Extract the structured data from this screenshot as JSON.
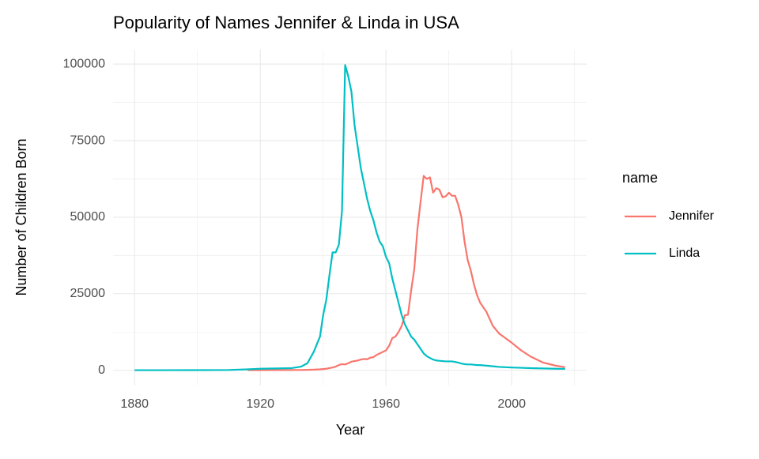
{
  "chart_data": {
    "type": "line",
    "title": "Popularity of Names Jennifer & Linda in USA",
    "x_label": "Year",
    "y_label": "Number of Children Born",
    "legend_title": "name",
    "x": [
      1880,
      1890,
      1900,
      1910,
      1916,
      1920,
      1925,
      1930,
      1933,
      1935,
      1937,
      1939,
      1940,
      1941,
      1942,
      1943,
      1944,
      1945,
      1946,
      1947,
      1948,
      1949,
      1950,
      1951,
      1952,
      1953,
      1954,
      1955,
      1956,
      1957,
      1958,
      1959,
      1960,
      1961,
      1962,
      1963,
      1964,
      1965,
      1966,
      1967,
      1968,
      1969,
      1970,
      1971,
      1972,
      1973,
      1974,
      1975,
      1976,
      1977,
      1978,
      1979,
      1980,
      1981,
      1982,
      1983,
      1984,
      1985,
      1986,
      1987,
      1988,
      1989,
      1990,
      1992,
      1994,
      1996,
      1998,
      2000,
      2003,
      2006,
      2010,
      2014,
      2017
    ],
    "series": [
      {
        "name": "Jennifer",
        "color": "#f8766d",
        "values": [
          null,
          null,
          null,
          null,
          30,
          50,
          60,
          80,
          100,
          150,
          200,
          300,
          400,
          500,
          700,
          900,
          1200,
          1700,
          2000,
          1900,
          2300,
          2800,
          3000,
          3200,
          3500,
          3700,
          3600,
          4100,
          4300,
          5000,
          5500,
          6000,
          6500,
          8000,
          10500,
          11000,
          12500,
          14500,
          18000,
          18100,
          26000,
          33000,
          46000,
          55000,
          63500,
          62500,
          63000,
          58000,
          59500,
          59000,
          56500,
          56800,
          58000,
          57000,
          57000,
          54000,
          50000,
          42000,
          36000,
          32500,
          28000,
          24500,
          22000,
          19000,
          14500,
          12000,
          10500,
          9000,
          6500,
          4500,
          2500,
          1500,
          1000
        ]
      },
      {
        "name": "Linda",
        "color": "#00bfc4",
        "values": [
          27,
          30,
          50,
          100,
          300,
          500,
          600,
          700,
          1200,
          2300,
          6000,
          11000,
          18000,
          23000,
          31000,
          38500,
          38500,
          41000,
          52000,
          99700,
          96000,
          91000,
          80000,
          73000,
          66000,
          61000,
          56000,
          52000,
          49000,
          45000,
          42000,
          40500,
          37000,
          35000,
          30000,
          26000,
          22000,
          18000,
          15000,
          13000,
          11000,
          10000,
          8500,
          7000,
          5500,
          4600,
          4000,
          3500,
          3200,
          3100,
          3000,
          2900,
          2900,
          2900,
          2700,
          2500,
          2200,
          2000,
          1900,
          1900,
          1800,
          1700,
          1700,
          1500,
          1300,
          1100,
          1000,
          900,
          800,
          700,
          600,
          500,
          450
        ]
      }
    ],
    "xlim": [
      1873.15,
      2023.85
    ],
    "xticks": [
      1880,
      1920,
      1960,
      2000
    ],
    "ylim": [
      -4985,
      104685
    ],
    "yticks": [
      0,
      25000,
      50000,
      75000,
      100000
    ],
    "grid": true
  }
}
